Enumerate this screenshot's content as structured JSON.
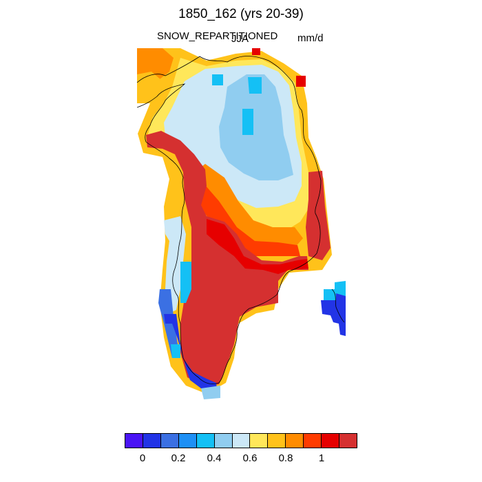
{
  "title": "1850_162 (yrs 20-39)",
  "variable": "SNOW_REPARTITIONED",
  "season": "JJA",
  "units": "mm/d",
  "colorbar": {
    "colors": [
      "#4a14f5",
      "#2234e6",
      "#3b70e3",
      "#1e90f5",
      "#14c0f5",
      "#90cdf0",
      "#cce8f7",
      "#ffe75a",
      "#ffc21a",
      "#ff8c00",
      "#ff3c00",
      "#e60000",
      "#d53030"
    ],
    "tick_labels": [
      "0",
      "0.2",
      "0.4",
      "0.6",
      "0.8",
      "1"
    ]
  }
}
